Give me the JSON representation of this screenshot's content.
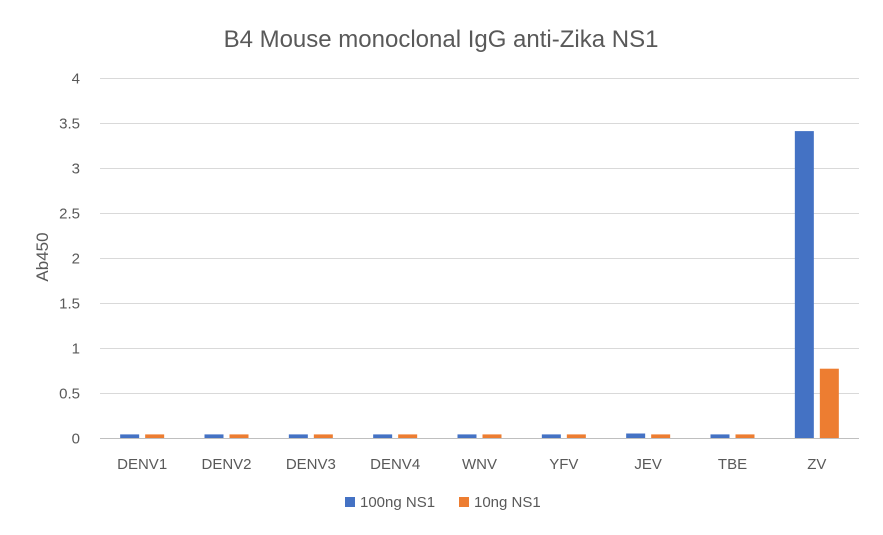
{
  "chart_data": {
    "type": "bar",
    "title": "B4 Mouse monoclonal IgG anti-Zika NS1",
    "xlabel": "",
    "ylabel": "Ab450",
    "ylim": [
      0,
      4
    ],
    "yticks": [
      0,
      0.5,
      1,
      1.5,
      2,
      2.5,
      3,
      3.5,
      4
    ],
    "ytick_labels": [
      "0",
      "0.5",
      "1",
      "1.5",
      "2",
      "2.5",
      "3",
      "3.5",
      "4"
    ],
    "grid": true,
    "legend_position": "bottom",
    "categories": [
      "DENV1",
      "DENV2",
      "DENV3",
      "DENV4",
      "WNV",
      "YFV",
      "JEV",
      "TBE",
      "ZV"
    ],
    "series": [
      {
        "name": "100ng NS1",
        "color": "#4472c4",
        "values": [
          0.04,
          0.04,
          0.04,
          0.04,
          0.04,
          0.04,
          0.05,
          0.04,
          3.41
        ]
      },
      {
        "name": "10ng NS1",
        "color": "#ed7d31",
        "values": [
          0.04,
          0.04,
          0.04,
          0.04,
          0.04,
          0.04,
          0.04,
          0.04,
          0.77
        ]
      }
    ]
  }
}
